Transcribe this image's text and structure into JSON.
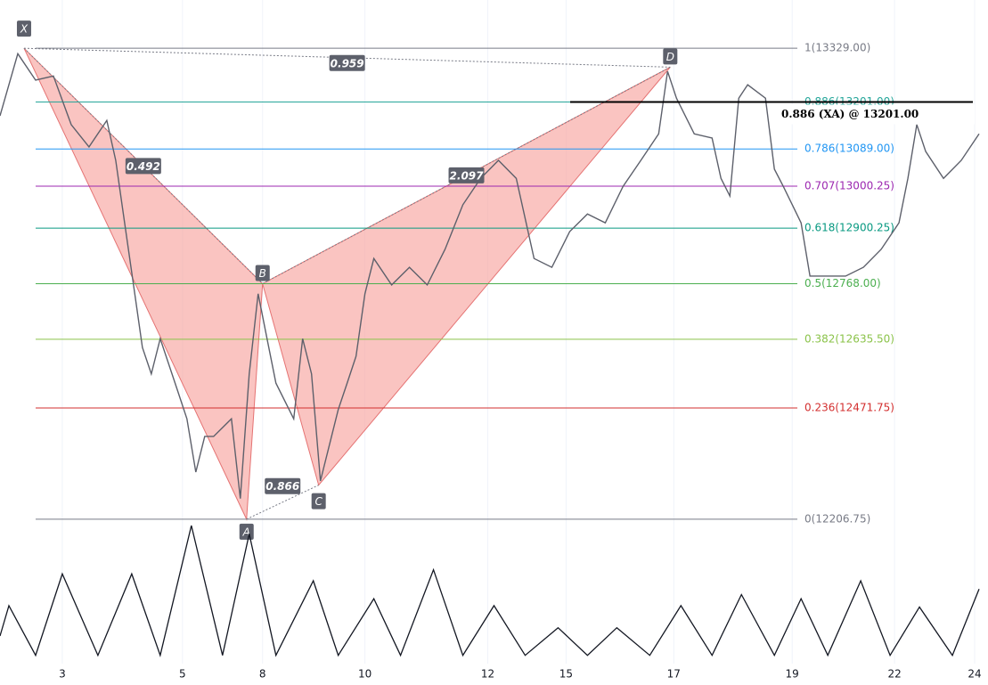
{
  "chart_data": [
    {
      "type": "line",
      "x": [
        0,
        2,
        4,
        6,
        8,
        10,
        12,
        13,
        14,
        15,
        16,
        17,
        18,
        20,
        21,
        22,
        23,
        24,
        26,
        27,
        28,
        29,
        30,
        31,
        33,
        34,
        35,
        36,
        38,
        39,
        40,
        41,
        42,
        44,
        46,
        48,
        50,
        52,
        54,
        56,
        58,
        60,
        62,
        64,
        66,
        68,
        70,
        72,
        74,
        75,
        76,
        78,
        80,
        81,
        82,
        83,
        84,
        86,
        87,
        88,
        90,
        91,
        93,
        95,
        97,
        99,
        101,
        102,
        103,
        104,
        106,
        108,
        110
      ],
      "values": [
        13168,
        13316,
        13253,
        13263,
        13147,
        13094,
        13157,
        13062,
        12913,
        12765,
        12616,
        12553,
        12637,
        12510,
        12446,
        12319,
        12404,
        12404,
        12446,
        12256,
        12553,
        12744,
        12637,
        12531,
        12446,
        12637,
        12553,
        12298,
        12468,
        12531,
        12595,
        12744,
        12828,
        12765,
        12807,
        12765,
        12850,
        12956,
        13019,
        13062,
        13019,
        12828,
        12807,
        12892,
        12934,
        12913,
        13000,
        13062,
        13125,
        13274,
        13210,
        13125,
        13115,
        13019,
        12977,
        13210,
        13242,
        13210,
        13041,
        13000,
        12913,
        12786,
        12786,
        12786,
        12807,
        12850,
        12913,
        13019,
        13147,
        13083,
        13019,
        13062,
        13125
      ],
      "color": "#5d606b",
      "xlim": [
        0,
        111
      ],
      "ylim": [
        12181,
        13444
      ],
      "xticks": [
        {
          "value": 7,
          "label": "3"
        },
        {
          "value": 20.5,
          "label": "5"
        },
        {
          "value": 29.5,
          "label": "8"
        },
        {
          "value": 41,
          "label": "10"
        },
        {
          "value": 54.8,
          "label": "12"
        },
        {
          "value": 63.6,
          "label": "15"
        },
        {
          "value": 75.7,
          "label": "17"
        },
        {
          "value": 89,
          "label": "19"
        },
        {
          "value": 100.5,
          "label": "22"
        },
        {
          "value": 109.5,
          "label": "24"
        }
      ],
      "levels": [
        {
          "label": "1(13329.00)",
          "value": 13329,
          "color": "#787b86"
        },
        {
          "label": "0.886(13201.00)",
          "value": 13201,
          "color": "#26a69a"
        },
        {
          "label": "0.786(13089.00)",
          "value": 13089,
          "color": "#2196f3"
        },
        {
          "label": "0.707(13000.25)",
          "value": 13000.25,
          "color": "#9c27b0"
        },
        {
          "label": "0.618(12900.25)",
          "value": 12900.25,
          "color": "#089981"
        },
        {
          "label": "0.5(12768.00)",
          "value": 12768,
          "color": "#4caf50"
        },
        {
          "label": "0.382(12635.50)",
          "value": 12635.5,
          "color": "#8bc34a"
        },
        {
          "label": "0.236(12471.75)",
          "value": 12471.75,
          "color": "#d32f2f"
        },
        {
          "label": "0(12206.75)",
          "value": 12206.75,
          "color": "#787b86"
        }
      ],
      "pattern": {
        "points": [
          {
            "label": "X",
            "x": 2.7,
            "value": 13329
          },
          {
            "label": "A",
            "x": 27.7,
            "value": 12206.75
          },
          {
            "label": "B",
            "x": 29.5,
            "value": 12768
          },
          {
            "label": "C",
            "x": 35.8,
            "value": 12288
          },
          {
            "label": "D",
            "x": 75.3,
            "value": 13284
          }
        ],
        "ratios": [
          0.959,
          0.492,
          2.097,
          0.866
        ]
      },
      "annotation": {
        "text": "0.886 (XA) @ 13201.00",
        "value": 13201
      }
    },
    {
      "type": "line",
      "x": [
        0,
        1,
        4,
        7,
        11,
        14.8,
        18,
        21.5,
        25,
        28,
        31,
        35.2,
        38,
        42,
        45,
        48.7,
        52,
        55.5,
        59,
        62.7,
        66,
        69.3,
        73,
        76.5,
        80,
        83.3,
        87,
        90,
        93,
        96.7,
        100,
        103.3,
        107,
        110
      ],
      "values": [
        20,
        42,
        6,
        65,
        6,
        65,
        6,
        100,
        6,
        94,
        6,
        60,
        6,
        47,
        6,
        68,
        6,
        42,
        6,
        26,
        6,
        26,
        6,
        42,
        6,
        50,
        6,
        47,
        6,
        60,
        6,
        41,
        6,
        54
      ],
      "color": "#131722",
      "xlim": [
        0,
        111
      ],
      "ylim": [
        0,
        100
      ]
    }
  ]
}
